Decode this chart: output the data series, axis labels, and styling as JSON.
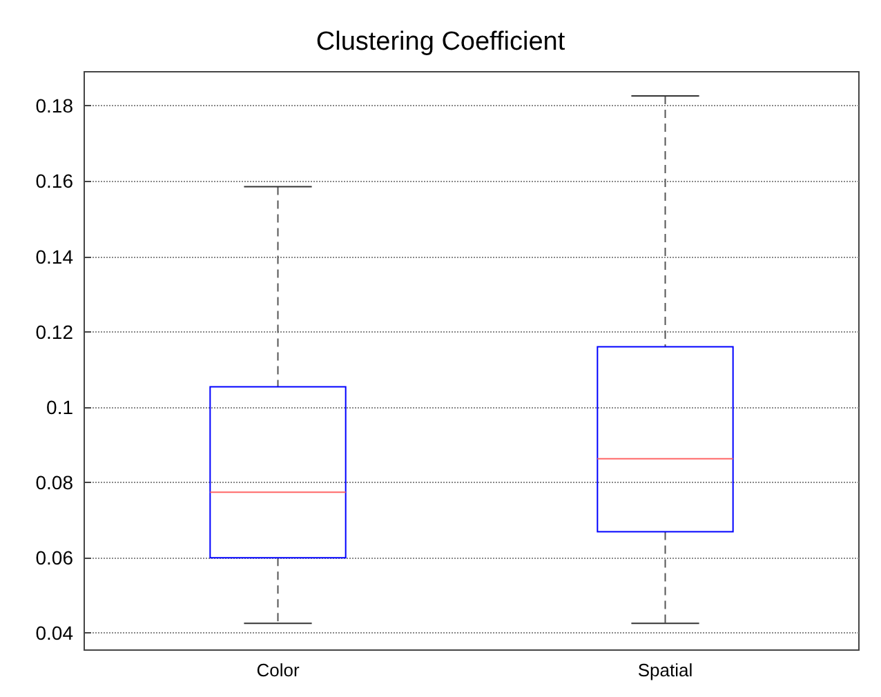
{
  "chart_data": {
    "type": "box",
    "title": "Clustering Coefficient",
    "categories": [
      "Color",
      "Spatial"
    ],
    "series": [
      {
        "color": "#0000ff",
        "boxes": [
          {
            "low": 0.0426,
            "q1": 0.06,
            "median": 0.0774,
            "q3": 0.1054,
            "high": 0.1585
          },
          {
            "low": 0.0426,
            "q1": 0.0669,
            "median": 0.0863,
            "q3": 0.116,
            "high": 0.1826
          }
        ]
      }
    ],
    "ylim": [
      0.0355,
      0.189
    ],
    "yticks": [
      0.04,
      0.06,
      0.08,
      0.1,
      0.12,
      0.14,
      0.16,
      0.18
    ],
    "grid": "y"
  }
}
